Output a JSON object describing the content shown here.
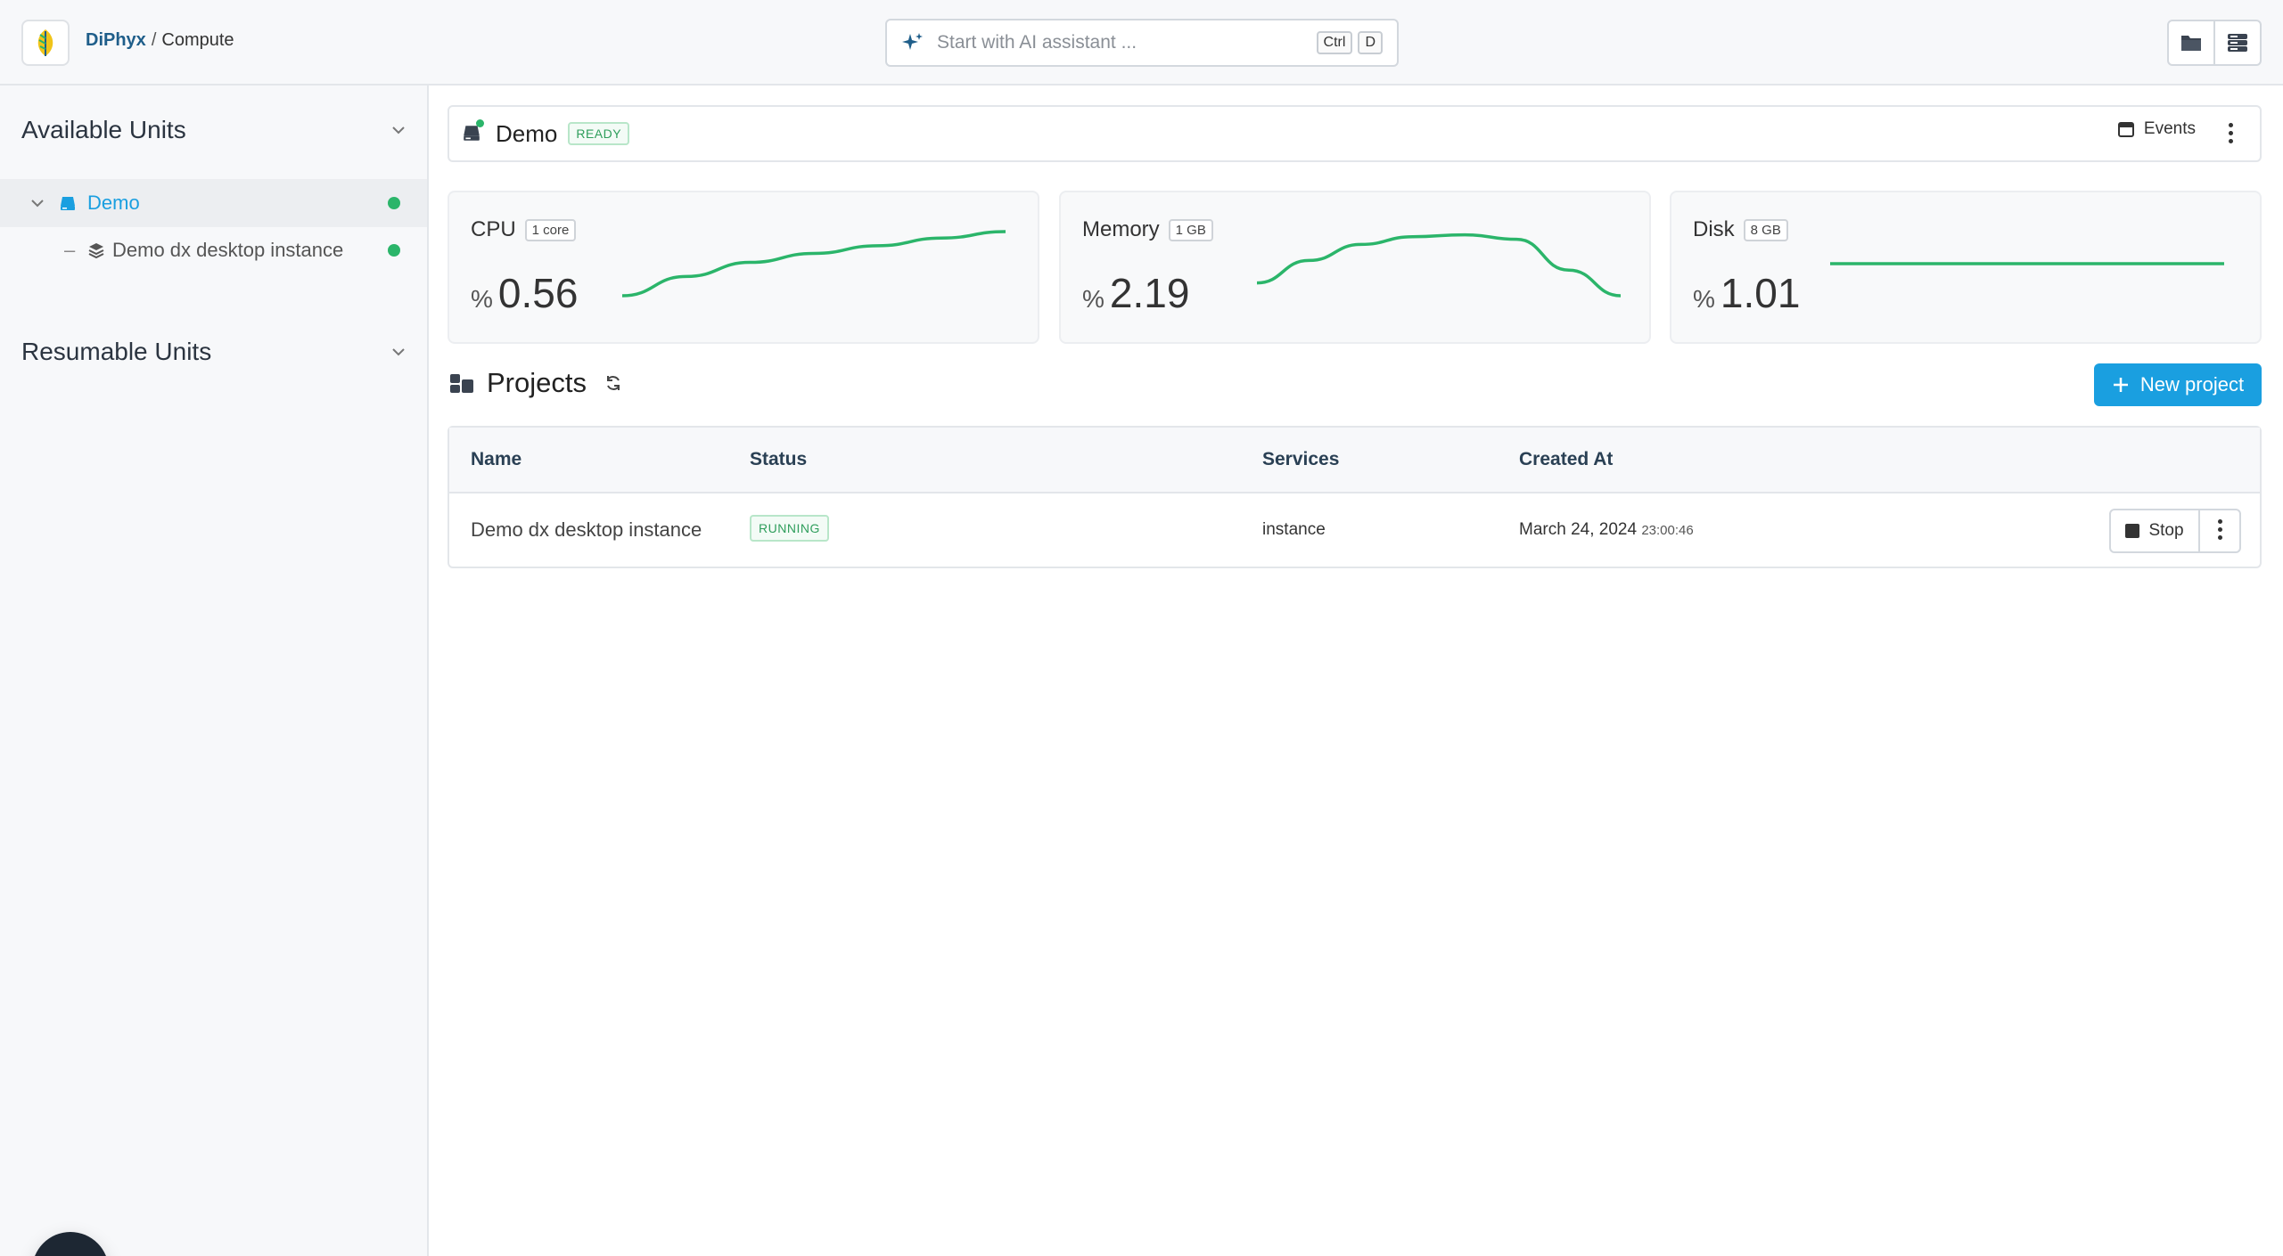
{
  "header": {
    "brand": "DiPhyx",
    "separator": "/",
    "current": "Compute",
    "ai_placeholder": "Start with AI assistant ...",
    "shortcut_keys": [
      "Ctrl",
      "D"
    ]
  },
  "sidebar": {
    "available_title": "Available Units",
    "resumable_title": "Resumable Units",
    "tree": [
      {
        "label": "Demo",
        "status": "online",
        "selected": true
      },
      {
        "label": "Demo dx desktop instance",
        "status": "online",
        "selected": false
      }
    ]
  },
  "unit": {
    "name": "Demo",
    "status": "READY",
    "events_label": "Events"
  },
  "metrics": [
    {
      "title": "CPU",
      "badge": "1 core",
      "unit": "%",
      "value": "0.56",
      "trend": [
        0.0,
        0.3,
        0.52,
        0.66,
        0.78,
        0.9,
        1.0
      ]
    },
    {
      "title": "Memory",
      "badge": "1 GB",
      "unit": "%",
      "value": "2.19",
      "trend": [
        0.2,
        0.55,
        0.8,
        0.92,
        0.95,
        0.88,
        0.4,
        0.0
      ]
    },
    {
      "title": "Disk",
      "badge": "8 GB",
      "unit": "%",
      "value": "1.01",
      "trend": [
        0.5,
        0.5,
        0.5,
        0.5
      ]
    }
  ],
  "projects": {
    "title": "Projects",
    "new_button": "New project",
    "columns": [
      "Name",
      "Status",
      "Services",
      "Created At"
    ],
    "rows": [
      {
        "name": "Demo dx desktop instance",
        "status": "RUNNING",
        "services": "instance",
        "created_date": "March 24, 2024",
        "created_time": "23:00:46",
        "action_label": "Stop"
      }
    ]
  },
  "colors": {
    "accent": "#1a9fe0",
    "success": "#2bb56a",
    "sparkline": "#2bb56a"
  }
}
